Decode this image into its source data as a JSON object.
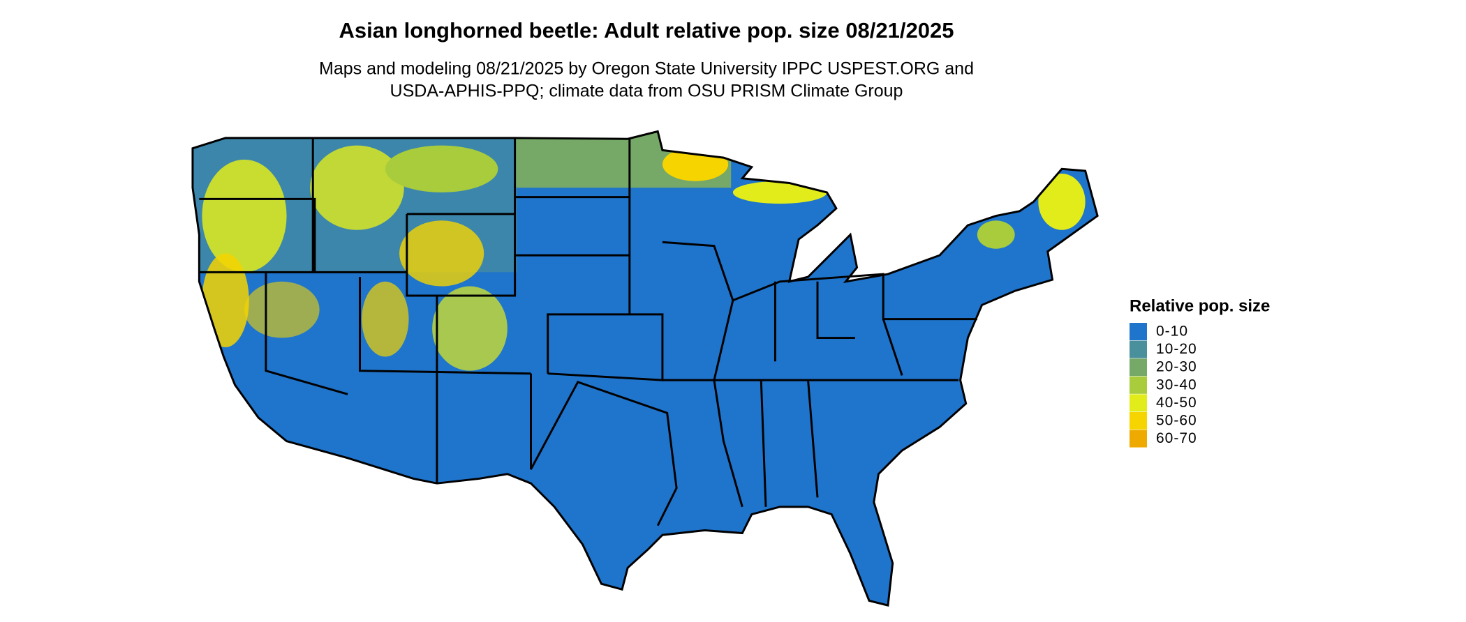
{
  "title": "Asian longhorned beetle: Adult relative pop. size 08/21/2025",
  "subtitle": [
    "Maps and modeling 08/21/2025 by Oregon State University IPPC USPEST.ORG and",
    "USDA-APHIS-PPQ; climate data from OSU PRISM Climate Group"
  ],
  "legend": {
    "title": "Relative pop. size",
    "items": [
      {
        "label": "0-10",
        "color": "#1f74cc"
      },
      {
        "label": "10-20",
        "color": "#4a8f9c"
      },
      {
        "label": "20-30",
        "color": "#76a868"
      },
      {
        "label": "30-40",
        "color": "#a8cc3c"
      },
      {
        "label": "40-50",
        "color": "#e2ec1a"
      },
      {
        "label": "50-60",
        "color": "#f5d400"
      },
      {
        "label": "60-70",
        "color": "#eeaa00"
      }
    ]
  }
}
